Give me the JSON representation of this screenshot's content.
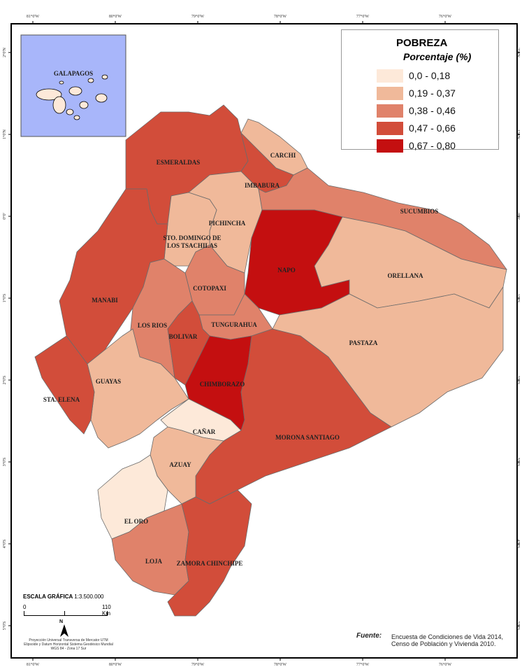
{
  "legend": {
    "title": "POBREZA",
    "subtitle": "Porcentaje (%)",
    "classes": [
      {
        "label": "0,0 - 0,18",
        "color": "#fde9d9"
      },
      {
        "label": "0,19 - 0,37",
        "color": "#f0b99a"
      },
      {
        "label": "0,38 - 0,46",
        "color": "#e0826a"
      },
      {
        "label": "0,47 - 0,66",
        "color": "#d24d3a"
      },
      {
        "label": "0,67 - 0,80",
        "color": "#c40f10"
      }
    ]
  },
  "inset": {
    "label": "GALAPAGOS",
    "background": "#a8b6fa"
  },
  "provinces": [
    {
      "name": "ESMERALDAS",
      "class": 3
    },
    {
      "name": "CARCHI",
      "class": 1
    },
    {
      "name": "IMBABURA",
      "class": 3
    },
    {
      "name": "SUCUMBIOS",
      "class": 2
    },
    {
      "name": "PICHINCHA",
      "class": 1
    },
    {
      "name": "STO. DOMINGO DE LOS TSACHILAS",
      "class": 1
    },
    {
      "name": "NAPO",
      "class": 4
    },
    {
      "name": "ORELLANA",
      "class": 1
    },
    {
      "name": "MANABI",
      "class": 3
    },
    {
      "name": "COTOPAXI",
      "class": 2
    },
    {
      "name": "LOS RIOS",
      "class": 2
    },
    {
      "name": "TUNGURAHUA",
      "class": 2
    },
    {
      "name": "BOLIVAR",
      "class": 3
    },
    {
      "name": "PASTAZA",
      "class": 1
    },
    {
      "name": "GUAYAS",
      "class": 1
    },
    {
      "name": "STA. ELENA",
      "class": 3
    },
    {
      "name": "CHIMBORAZO",
      "class": 4
    },
    {
      "name": "CAÑAR",
      "class": 0
    },
    {
      "name": "MORONA SANTIAGO",
      "class": 3
    },
    {
      "name": "AZUAY",
      "class": 1
    },
    {
      "name": "EL ORO",
      "class": 0
    },
    {
      "name": "LOJA",
      "class": 2
    },
    {
      "name": "ZAMORA CHINCHIPE",
      "class": 3
    }
  ],
  "graticule": {
    "longitudes": [
      "81°0'W",
      "80°0'W",
      "79°0'W",
      "78°0'W",
      "77°0'W",
      "76°0'W"
    ],
    "latitudes": [
      "2°0'N",
      "1°0'N",
      "0°0'",
      "1°0'S",
      "2°0'S",
      "3°0'S",
      "4°0'S",
      "5°0'S"
    ]
  },
  "scale": {
    "title": "ESCALA GRÁFICA",
    "ratio": "1:3.500.000",
    "start": "0",
    "end": "110 Km",
    "north": "N",
    "projection": [
      "Proyección Universal Transversa de Mercator UTM",
      "Elipsoide y Datum Horizontal Sistema Geodésico Mundial",
      "WGS 84 - Zona 17 Sur"
    ]
  },
  "source": {
    "label": "Fuente:",
    "lines": [
      "Encuesta de Condiciones de Vida 2014,",
      "Censo de Población y Vivienda 2010."
    ]
  }
}
